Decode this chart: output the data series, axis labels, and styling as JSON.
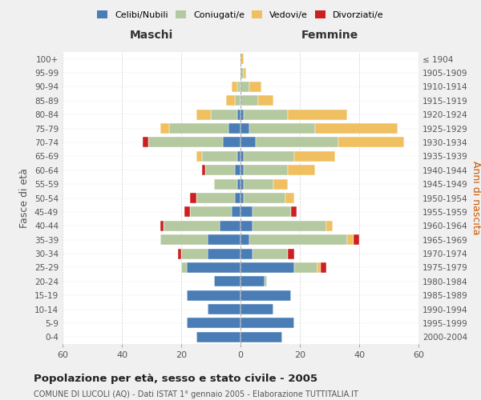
{
  "age_groups": [
    "0-4",
    "5-9",
    "10-14",
    "15-19",
    "20-24",
    "25-29",
    "30-34",
    "35-39",
    "40-44",
    "45-49",
    "50-54",
    "55-59",
    "60-64",
    "65-69",
    "70-74",
    "75-79",
    "80-84",
    "85-89",
    "90-94",
    "95-99",
    "100+"
  ],
  "birth_years": [
    "2000-2004",
    "1995-1999",
    "1990-1994",
    "1985-1989",
    "1980-1984",
    "1975-1979",
    "1970-1974",
    "1965-1969",
    "1960-1964",
    "1955-1959",
    "1950-1954",
    "1945-1949",
    "1940-1944",
    "1935-1939",
    "1930-1934",
    "1925-1929",
    "1920-1924",
    "1915-1919",
    "1910-1914",
    "1905-1909",
    "≤ 1904"
  ],
  "colors": {
    "celibi": "#4a7db5",
    "coniugati": "#b5c9a0",
    "vedovi": "#f0c060",
    "divorziati": "#cc2020"
  },
  "maschi": {
    "celibi": [
      15,
      18,
      11,
      18,
      9,
      18,
      11,
      11,
      7,
      3,
      2,
      1,
      2,
      1,
      6,
      4,
      1,
      0,
      0,
      0,
      0
    ],
    "coniugati": [
      0,
      0,
      0,
      0,
      0,
      2,
      9,
      16,
      19,
      14,
      13,
      8,
      10,
      12,
      25,
      20,
      9,
      2,
      1,
      0,
      0
    ],
    "vedovi": [
      0,
      0,
      0,
      0,
      0,
      0,
      0,
      0,
      0,
      0,
      0,
      0,
      0,
      2,
      0,
      3,
      5,
      3,
      2,
      0,
      0
    ],
    "divorziati": [
      0,
      0,
      0,
      0,
      0,
      0,
      1,
      0,
      1,
      2,
      2,
      0,
      1,
      0,
      2,
      0,
      0,
      0,
      0,
      0,
      0
    ]
  },
  "femmine": {
    "celibi": [
      14,
      18,
      11,
      17,
      8,
      18,
      4,
      3,
      4,
      4,
      1,
      1,
      1,
      1,
      5,
      3,
      1,
      0,
      0,
      0,
      0
    ],
    "coniugati": [
      0,
      0,
      0,
      0,
      1,
      8,
      12,
      33,
      25,
      13,
      14,
      10,
      15,
      17,
      28,
      22,
      15,
      6,
      3,
      1,
      0
    ],
    "vedovi": [
      0,
      0,
      0,
      0,
      0,
      1,
      0,
      2,
      2,
      0,
      3,
      5,
      9,
      14,
      22,
      28,
      20,
      5,
      4,
      1,
      1
    ],
    "divorziati": [
      0,
      0,
      0,
      0,
      0,
      2,
      2,
      2,
      0,
      2,
      0,
      0,
      0,
      0,
      0,
      0,
      0,
      0,
      0,
      0,
      0
    ]
  },
  "title": "Popolazione per età, sesso e stato civile - 2005",
  "subtitle": "COMUNE DI LUCOLI (AQ) - Dati ISTAT 1° gennaio 2005 - Elaborazione TUTTITALIA.IT",
  "xlabel_maschi": "Maschi",
  "xlabel_femmine": "Femmine",
  "ylabel_left": "Fasce di età",
  "ylabel_right": "Anni di nascita",
  "xlim": 60,
  "background_color": "#f0f0f0",
  "plot_bg": "#ffffff",
  "legend_labels": [
    "Celibi/Nubili",
    "Coniugati/e",
    "Vedovi/e",
    "Divorziati/e"
  ]
}
